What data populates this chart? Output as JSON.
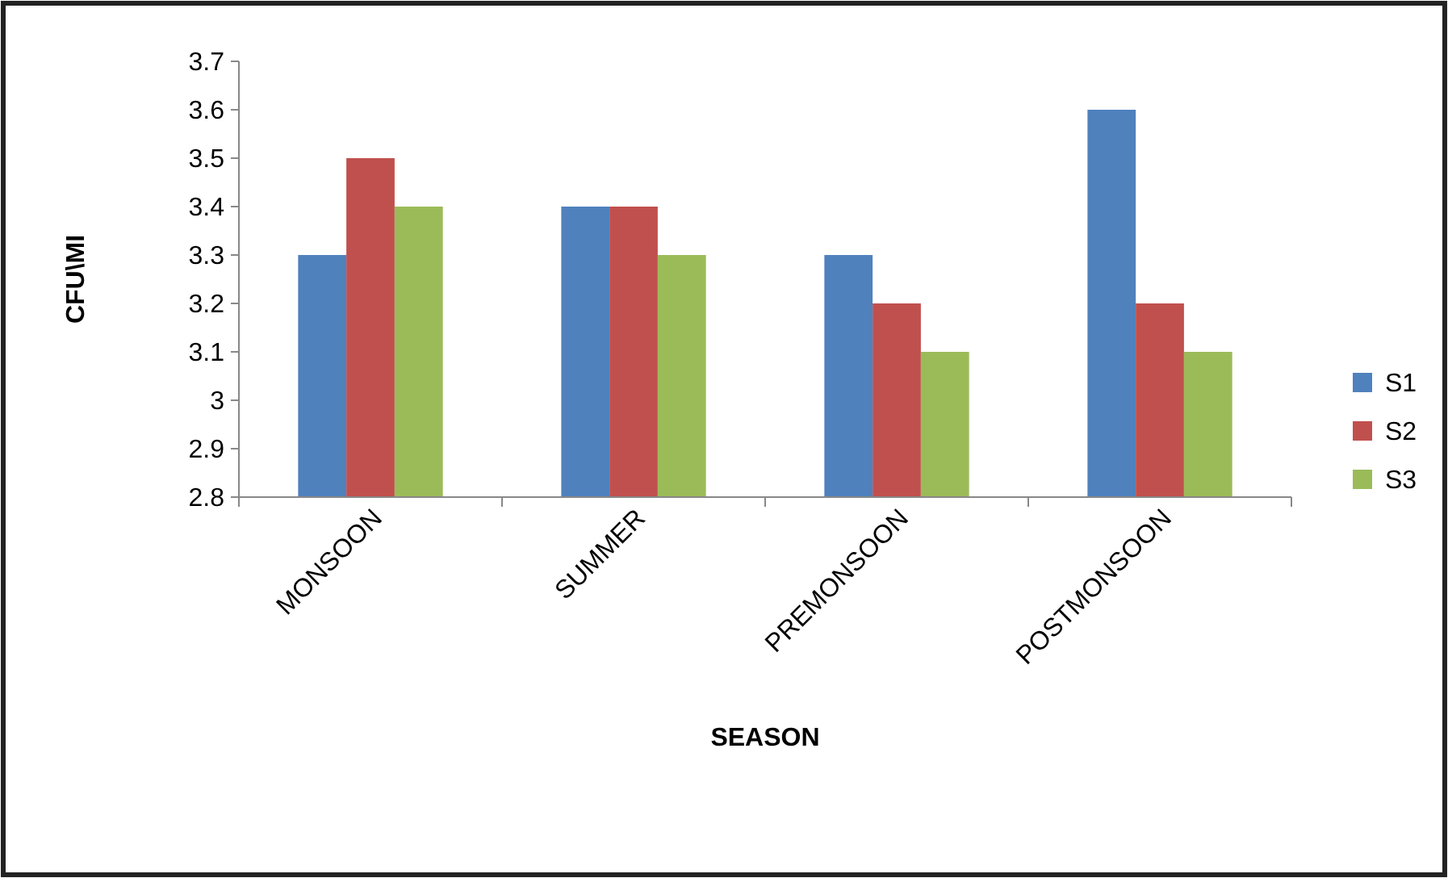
{
  "chart_data": {
    "type": "bar",
    "xlabel": "SEASON",
    "ylabel": "CFU\\MI",
    "categories": [
      "MONSOON",
      "SUMMER",
      "PREMONSOON",
      "POSTMONSOON"
    ],
    "series": [
      {
        "name": "S1",
        "color": "#4f81bd",
        "values": [
          3.3,
          3.4,
          3.3,
          3.6
        ]
      },
      {
        "name": "S2",
        "color": "#c0504d",
        "values": [
          3.5,
          3.4,
          3.2,
          3.2
        ]
      },
      {
        "name": "S3",
        "color": "#9bbb59",
        "values": [
          3.4,
          3.3,
          3.1,
          3.1
        ]
      }
    ],
    "ylim": [
      2.8,
      3.7
    ],
    "yticks": [
      2.8,
      2.9,
      3,
      3.1,
      3.2,
      3.3,
      3.4,
      3.5,
      3.6,
      3.7
    ],
    "grid": false,
    "legend": "right"
  }
}
